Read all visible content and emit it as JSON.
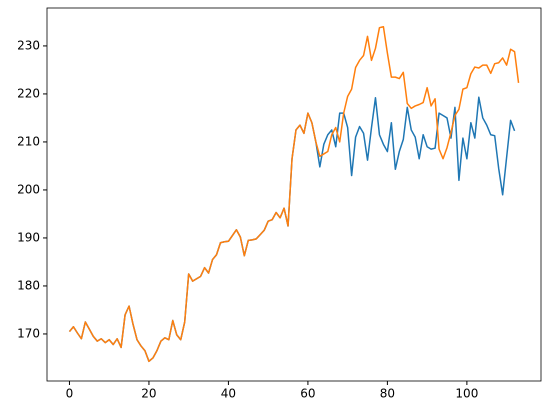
{
  "chart_data": {
    "type": "line",
    "x": [
      0,
      1,
      2,
      3,
      4,
      5,
      6,
      7,
      8,
      9,
      10,
      11,
      12,
      13,
      14,
      15,
      16,
      17,
      18,
      19,
      20,
      21,
      22,
      23,
      24,
      25,
      26,
      27,
      28,
      29,
      30,
      31,
      32,
      33,
      34,
      35,
      36,
      37,
      38,
      39,
      40,
      41,
      42,
      43,
      44,
      45,
      46,
      47,
      48,
      49,
      50,
      51,
      52,
      53,
      54,
      55,
      56,
      57,
      58,
      59,
      60,
      61,
      62,
      63,
      64,
      65,
      66,
      67,
      68,
      69,
      70,
      71,
      72,
      73,
      74,
      75,
      76,
      77,
      78,
      79,
      80,
      81,
      82,
      83,
      84,
      85,
      86,
      87,
      88,
      89,
      90,
      91,
      92,
      93,
      94,
      95,
      96,
      97,
      98,
      99,
      100,
      101,
      102,
      103,
      104,
      105,
      106,
      107,
      108,
      109,
      110,
      111,
      112,
      113
    ],
    "series": [
      {
        "color": "#1f77b4",
        "values": [
          170.5,
          171.5,
          170.2,
          169,
          172.5,
          171,
          169.5,
          168.5,
          169,
          168.2,
          168.8,
          167.8,
          169,
          167.2,
          174,
          175.8,
          172,
          168.8,
          167.5,
          166.5,
          164.3,
          165,
          166.5,
          168.5,
          169.2,
          168.8,
          172.8,
          169.8,
          168.8,
          172.5,
          182.5,
          181,
          181.5,
          182,
          183.8,
          182.7,
          185.5,
          186.5,
          189,
          189.2,
          189.3,
          190.5,
          191.7,
          190.2,
          186.3,
          189.5,
          189.6,
          189.8,
          190.7,
          191.6,
          193.5,
          193.8,
          195.3,
          194.2,
          196.2,
          192.5,
          206.5,
          212.5,
          213.5,
          211.8,
          216,
          214,
          210,
          204.8,
          209.5,
          211.5,
          212.5,
          209,
          216,
          216,
          213,
          203,
          211,
          213.2,
          211.8,
          206.2,
          213,
          219.2,
          211.5,
          209.5,
          208,
          214,
          204.3,
          208,
          210.5,
          217.2,
          212.5,
          211,
          206.5,
          211.5,
          209,
          208.5,
          208.7,
          216,
          215.5,
          215,
          210.8,
          217.2,
          202,
          210.8,
          206.5,
          214,
          210.8,
          219.3,
          215,
          213.5,
          211.5,
          211.3,
          204.5,
          199,
          206.8,
          214.5,
          212.3,
          null
        ]
      },
      {
        "color": "#ff7f0e",
        "values": [
          170.5,
          171.5,
          170.2,
          169,
          172.5,
          171,
          169.5,
          168.5,
          169,
          168.2,
          168.8,
          167.8,
          169,
          167.2,
          174,
          175.8,
          172,
          168.8,
          167.5,
          166.5,
          164.3,
          165,
          166.5,
          168.5,
          169.2,
          168.8,
          172.8,
          169.8,
          168.8,
          172.5,
          182.5,
          181,
          181.5,
          182,
          183.8,
          182.7,
          185.5,
          186.5,
          189,
          189.2,
          189.3,
          190.5,
          191.7,
          190.2,
          186.3,
          189.5,
          189.6,
          189.8,
          190.7,
          191.6,
          193.5,
          193.8,
          195.3,
          194.2,
          196.2,
          192.5,
          206.5,
          212.5,
          213.5,
          211.8,
          216,
          214,
          210,
          207,
          207.5,
          208,
          211.5,
          213,
          210,
          216,
          219.5,
          221,
          225.5,
          227,
          228,
          232,
          227,
          229.5,
          233.8,
          234,
          228.5,
          223.5,
          223.5,
          223.2,
          224.5,
          218,
          217,
          217.5,
          217.8,
          218.2,
          221.3,
          217.5,
          219,
          208.5,
          206.5,
          208.8,
          212,
          215.5,
          216.8,
          221,
          221.3,
          224.2,
          225.6,
          225.4,
          226,
          226,
          224.3,
          226.3,
          226.5,
          227.5,
          226,
          229.3,
          228.8,
          222.3
        ]
      }
    ],
    "xlim": [
      -5.65,
      118.65
    ],
    "ylim": [
      160.2,
      237.9
    ],
    "xticks": [
      0,
      20,
      40,
      60,
      80,
      100
    ],
    "yticks": [
      170,
      180,
      190,
      200,
      210,
      220,
      230
    ]
  }
}
